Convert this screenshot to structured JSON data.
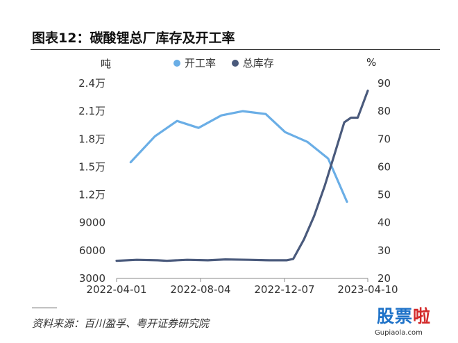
{
  "title": "图表12：碳酸锂总厂库存及开工率",
  "legend": [
    {
      "label": "开工率",
      "color": "#6aaee6"
    },
    {
      "label": "总库存",
      "color": "#4a5a7c"
    }
  ],
  "source": "资料来源：百川盈孚、粤开证券研究院",
  "watermark": {
    "part1": "股票",
    "part2": "啦",
    "url": "Gupiaola.com"
  },
  "chart_data": {
    "type": "line",
    "title": "碳酸锂总厂库存及开工率",
    "x_ticks": [
      "2022-04-01",
      "2022-08-04",
      "2022-12-07",
      "2023-04-10"
    ],
    "x_range": [
      "2022-04-01",
      "2023-04-10"
    ],
    "left_axis": {
      "unit": "吨",
      "min": 3000,
      "max": 24000,
      "tick_values": [
        3000,
        6000,
        9000,
        12000,
        15000,
        18000,
        21000,
        24000
      ],
      "tick_labels": [
        "3000",
        "6000",
        "9000",
        "1.2万",
        "1.5万",
        "1.8万",
        "2.1万",
        "2.4万"
      ]
    },
    "right_axis": {
      "unit": "%",
      "min": 20,
      "max": 90,
      "tick_labels": [
        "20",
        "30",
        "40",
        "50",
        "60",
        "70",
        "80",
        "90"
      ]
    },
    "grid": false,
    "legend_position": "top",
    "series": [
      {
        "name": "开工率",
        "axis": "right",
        "color": "#6aaee6",
        "points": [
          {
            "x": "2022-04-22",
            "y": 61.7
          },
          {
            "x": "2022-05-28",
            "y": 71.0
          },
          {
            "x": "2022-06-30",
            "y": 76.5
          },
          {
            "x": "2022-08-01",
            "y": 74.0
          },
          {
            "x": "2022-09-04",
            "y": 78.5
          },
          {
            "x": "2022-10-06",
            "y": 80.0
          },
          {
            "x": "2022-11-09",
            "y": 79.0
          },
          {
            "x": "2022-12-08",
            "y": 72.5
          },
          {
            "x": "2023-01-10",
            "y": 69.0
          },
          {
            "x": "2023-02-10",
            "y": 63.0
          },
          {
            "x": "2023-03-10",
            "y": 47.5
          }
        ]
      },
      {
        "name": "总库存",
        "axis": "left",
        "color": "#4a5a7c",
        "points": [
          {
            "x": "2022-04-01",
            "y": 4900
          },
          {
            "x": "2022-05-01",
            "y": 5000
          },
          {
            "x": "2022-06-01",
            "y": 4950
          },
          {
            "x": "2022-06-15",
            "y": 4900
          },
          {
            "x": "2022-07-15",
            "y": 5000
          },
          {
            "x": "2022-08-15",
            "y": 4950
          },
          {
            "x": "2022-09-10",
            "y": 5050
          },
          {
            "x": "2022-10-15",
            "y": 5000
          },
          {
            "x": "2022-11-15",
            "y": 4950
          },
          {
            "x": "2022-12-10",
            "y": 4950
          },
          {
            "x": "2022-12-20",
            "y": 5100
          },
          {
            "x": "2023-01-05",
            "y": 7200
          },
          {
            "x": "2023-01-20",
            "y": 9700
          },
          {
            "x": "2023-02-05",
            "y": 13000
          },
          {
            "x": "2023-02-20",
            "y": 16500
          },
          {
            "x": "2023-03-06",
            "y": 19800
          },
          {
            "x": "2023-03-16",
            "y": 20300
          },
          {
            "x": "2023-03-26",
            "y": 20300
          },
          {
            "x": "2023-04-10",
            "y": 23200
          }
        ]
      }
    ]
  }
}
